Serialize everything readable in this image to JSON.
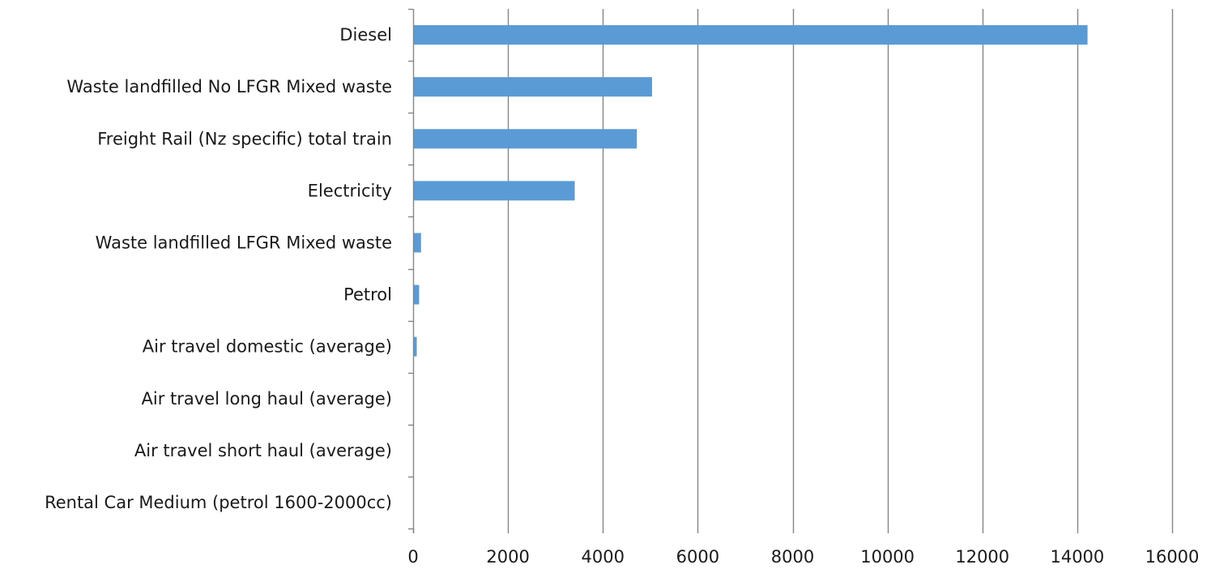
{
  "chart_data": {
    "type": "bar",
    "orientation": "horizontal",
    "categories": [
      "Diesel",
      "Waste landfilled No LFGR Mixed waste",
      "Freight Rail (Nz specific) total train",
      "Electricity",
      "Waste landfilled LFGR Mixed waste",
      "Petrol",
      "Air travel domestic (average)",
      "Air travel long haul (average)",
      "Air travel short haul (average)",
      "Rental Car Medium (petrol 1600-2000cc)"
    ],
    "values": [
      14200,
      5020,
      4700,
      3390,
      150,
      110,
      60,
      0,
      0,
      0
    ],
    "xlim": [
      0,
      16000
    ],
    "xticks": [
      0,
      2000,
      4000,
      6000,
      8000,
      10000,
      12000,
      14000,
      16000
    ],
    "title": "",
    "xlabel": "",
    "ylabel": "",
    "grid": "vertical",
    "legend": "none",
    "bar_color": "#5b9bd5",
    "grid_color": "#868686",
    "axis_color": "#868686",
    "text_color": "#1a1a1a"
  }
}
